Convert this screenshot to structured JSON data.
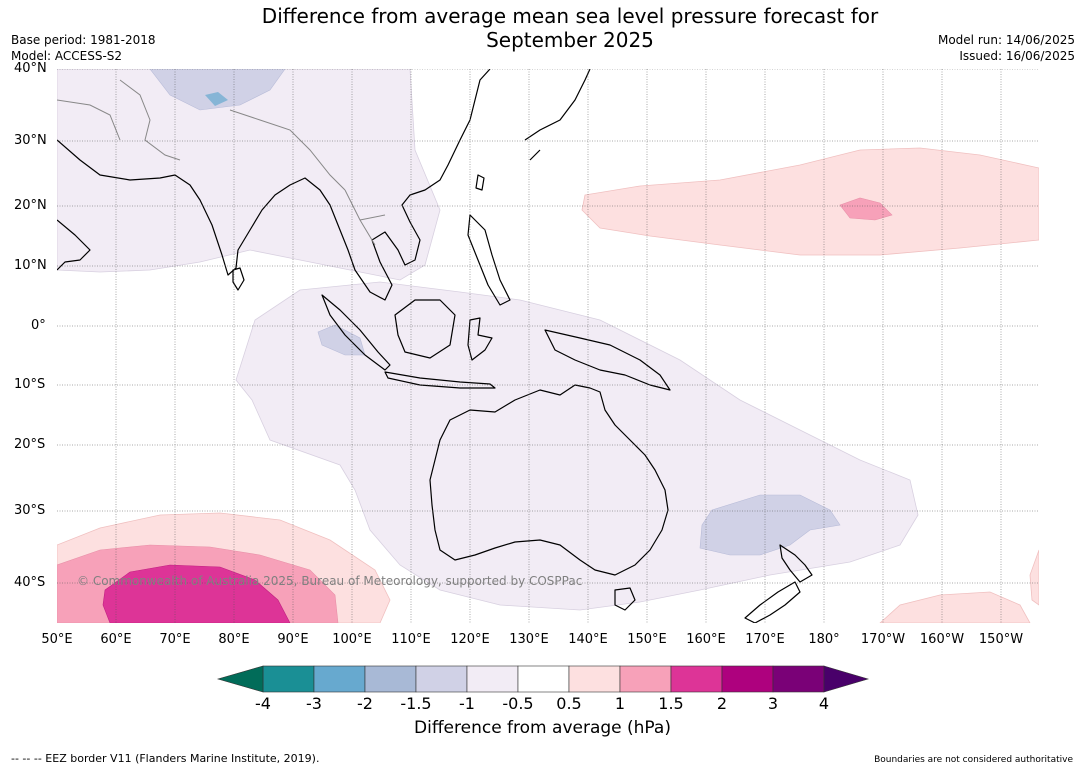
{
  "title_line1": "Difference from average mean sea level pressure forecast for",
  "title_line2": "September 2025",
  "meta": {
    "base_period": "Base period: 1981-2018",
    "model": "Model: ACCESS-S2",
    "model_run": "Model run: 14/06/2025",
    "issued": "Issued: 16/06/2025"
  },
  "lat_labels": [
    "40°N",
    "30°N",
    "20°N",
    "10°N",
    "0°",
    "10°S",
    "20°S",
    "30°S",
    "40°S"
  ],
  "lon_labels": [
    "50°E",
    "60°E",
    "70°E",
    "80°E",
    "90°E",
    "100°E",
    "110°E",
    "120°E",
    "130°E",
    "140°E",
    "150°E",
    "160°E",
    "170°E",
    "180°",
    "170°W",
    "160°W",
    "150°W"
  ],
  "copyright": "© Commonwealth of Australia 2025, Bureau of Meteorology, supported by COSPPac",
  "colorbar": {
    "title": "Difference from average (hPa)",
    "ticks": [
      "-4",
      "-3",
      "-2",
      "-1.5",
      "-1",
      "-0.5",
      "0.5",
      "1",
      "1.5",
      "2",
      "3",
      "4"
    ],
    "colors": [
      "#1a8f95",
      "#67a9cf",
      "#a8b9d6",
      "#d0d1e6",
      "#f2ecf5",
      "#ffffff",
      "#fde0e0",
      "#f7a1b9",
      "#dd3497",
      "#ae017e",
      "#7a0177"
    ],
    "under_color": "#016c59",
    "over_color": "#49006a"
  },
  "footer_left": "--  --  -- EEZ border V11 (Flanders Marine Institute, 2019).",
  "footer_right": "Boundaries are not considered authoritative"
}
